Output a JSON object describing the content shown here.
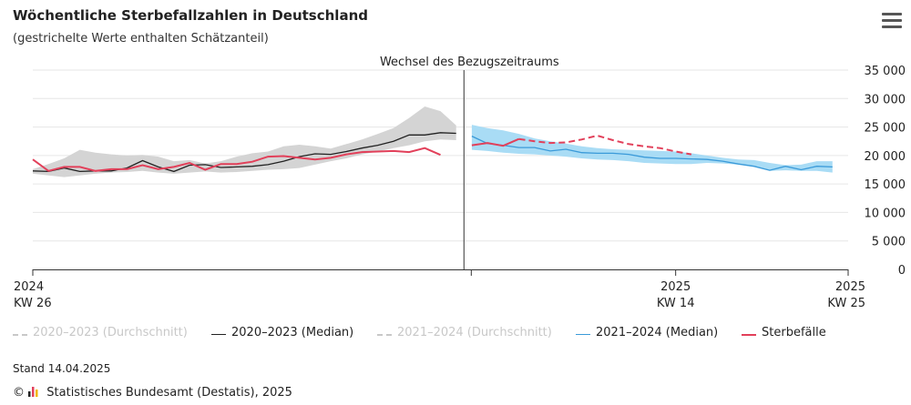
{
  "header": {
    "title": "Wöchentliche Sterbefallzahlen in Deutschland",
    "subtitle": "(gestrichelte Werte enthalten Schätzanteil)",
    "menu_icon": "hamburger-menu-icon"
  },
  "colors": {
    "median_2020_2023": "#222222",
    "band_2020_2023": "#d4d4d4",
    "median_2021_2024": "#3a9ad9",
    "band_2021_2024": "#a9dcf5",
    "sterbefaelle": "#e2405a",
    "hidden_legend": "#c8c8c8",
    "divider": "#555555"
  },
  "chart_data": {
    "type": "line",
    "annotation": "Wechsel des Bezugszeitraums",
    "ylim": [
      0,
      35000
    ],
    "yticks": [
      "0",
      "5 000",
      "10 000",
      "15 000",
      "20 000",
      "25 000",
      "30 000",
      "35 000"
    ],
    "ytick_values": [
      0,
      5000,
      10000,
      15000,
      20000,
      25000,
      30000,
      35000
    ],
    "xlim": [
      0,
      52
    ],
    "xticks": [
      {
        "x": 0,
        "line1": "2024",
        "line2": "KW 26"
      },
      {
        "x": 41,
        "line1": "2025",
        "line2": "KW 14"
      },
      {
        "x": 52,
        "line1": "2025",
        "line2": "KW 25"
      }
    ],
    "divider_x": 27.5,
    "x_left": [
      0,
      1,
      2,
      3,
      4,
      5,
      6,
      7,
      8,
      9,
      10,
      11,
      12,
      13,
      14,
      15,
      16,
      17,
      18,
      19,
      20,
      21,
      22,
      23,
      24,
      25,
      26,
      27
    ],
    "x_right": [
      28,
      29,
      30,
      31,
      32,
      33,
      34,
      35,
      36,
      37,
      38,
      39,
      40,
      41,
      42,
      43,
      44,
      45,
      46,
      47,
      48,
      49,
      50,
      51,
      52
    ],
    "series": [
      {
        "name": "2020–2023 (Median)",
        "segment": "left",
        "values": [
          17300,
          17200,
          17800,
          17200,
          17300,
          17300,
          17800,
          19100,
          18000,
          17200,
          18300,
          18400,
          17900,
          18000,
          18100,
          18400,
          19000,
          19800,
          20300,
          20200,
          20700,
          21300,
          21800,
          22500,
          23600,
          23600,
          24000,
          23900
        ]
      },
      {
        "name": "2020–2023 (Durchschnitt)",
        "segment": "left",
        "band_low": [
          16800,
          16500,
          16200,
          16500,
          16800,
          17000,
          17100,
          17300,
          17000,
          16800,
          17000,
          17200,
          17000,
          17100,
          17300,
          17500,
          17600,
          17800,
          18400,
          19000,
          19500,
          20200,
          20700,
          21300,
          21800,
          22500,
          22800,
          22700
        ],
        "band_high": [
          17600,
          18500,
          19500,
          21000,
          20500,
          20200,
          20000,
          20100,
          19800,
          19000,
          19200,
          18600,
          19000,
          19800,
          20400,
          20700,
          21600,
          21900,
          21600,
          21200,
          22000,
          22800,
          23800,
          24800,
          26600,
          28600,
          27800,
          25300
        ]
      },
      {
        "name": "Sterbefälle",
        "segment": "left",
        "values": [
          19300,
          17300,
          18000,
          18000,
          17300,
          17600,
          17600,
          18300,
          17600,
          18000,
          18700,
          17500,
          18500,
          18500,
          18900,
          19800,
          19900,
          19600,
          19300,
          19600,
          20200,
          20600,
          20700,
          20800,
          20600,
          21300,
          20100
        ]
      },
      {
        "name": "2021–2024 (Median)",
        "segment": "right",
        "values": [
          23400,
          22100,
          21800,
          21400,
          21400,
          20800,
          21100,
          20500,
          20400,
          20400,
          20200,
          19700,
          19500,
          19500,
          19400,
          19300,
          19000,
          18500,
          18100,
          17400,
          18100,
          17500,
          18100,
          18000
        ]
      },
      {
        "name": "2021–2024 (Durchschnitt)",
        "segment": "right",
        "band_low": [
          21000,
          20800,
          20500,
          20300,
          20200,
          20000,
          19800,
          19500,
          19300,
          19200,
          19000,
          18700,
          18600,
          18500,
          18500,
          18700,
          18600,
          18400,
          18000,
          17300,
          17400,
          17300,
          17300,
          17000
        ],
        "band_high": [
          25400,
          24800,
          24400,
          23800,
          23000,
          22500,
          22100,
          21600,
          21300,
          21100,
          21000,
          20900,
          20800,
          20700,
          20400,
          20000,
          19600,
          19300,
          19200,
          18700,
          18300,
          18400,
          19000,
          19000
        ]
      },
      {
        "name": "Sterbefälle",
        "segment": "right",
        "values": [
          21800,
          22200,
          21700,
          22900,
          22500,
          22200,
          22300,
          22800,
          23500,
          22700,
          22000,
          21600,
          21300,
          20700,
          20200
        ]
      }
    ],
    "dashed_from_index_right": 3
  },
  "legend": {
    "items": [
      {
        "label": "2020–2023 (Durchschnitt)",
        "visible": false,
        "style": "dashdot",
        "color": "#c8c8c8"
      },
      {
        "label": "2020–2023 (Median)",
        "visible": true,
        "style": "solid",
        "color": "#222222"
      },
      {
        "label": "2021–2024 (Durchschnitt)",
        "visible": false,
        "style": "dashdot",
        "color": "#c8c8c8"
      },
      {
        "label": "2021–2024 (Median)",
        "visible": true,
        "style": "solid",
        "color": "#3a9ad9"
      },
      {
        "label": "Sterbefälle",
        "visible": true,
        "style": "solid",
        "color": "#e2405a"
      }
    ]
  },
  "footer": {
    "stand": "Stand 14.04.2025",
    "copyright_symbol": "©",
    "logo_icon": "destatis-logo-icon",
    "source": "Statistisches Bundesamt (Destatis), 2025"
  }
}
